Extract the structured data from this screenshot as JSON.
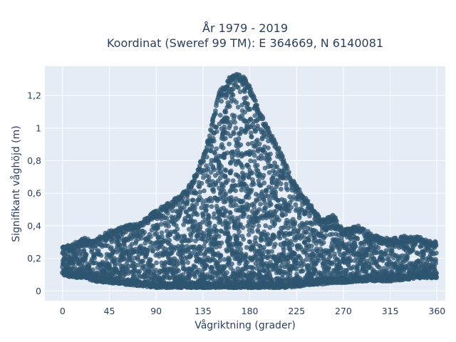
{
  "chart_data": {
    "type": "scatter",
    "title": [
      "År 1979 - 2019",
      "Koordinat (Sweref 99 TM): E 364669, N 6140081"
    ],
    "xlabel": "Vågriktning (grader)",
    "ylabel": "Signifikant våghöjd (m)",
    "xlim": [
      -17,
      368
    ],
    "ylim": [
      -0.06,
      1.38
    ],
    "xticks": [
      0,
      45,
      90,
      135,
      180,
      225,
      270,
      315,
      360
    ],
    "xtick_labels": [
      "0",
      "45",
      "90",
      "135",
      "180",
      "225",
      "270",
      "315",
      "360"
    ],
    "yticks": [
      0,
      0.2,
      0.4,
      0.6,
      0.8,
      1,
      1.2
    ],
    "ytick_labels": [
      "0",
      "0,2",
      "0,4",
      "0,6",
      "0,8",
      "1",
      "1,2"
    ],
    "grid": true,
    "colors": {
      "marker": "#2f5570",
      "plot_bg": "#e5ecf6",
      "grid": "#ffffff"
    },
    "series": [
      {
        "x": [
          0,
          10,
          20,
          30,
          45,
          60,
          75,
          90,
          105,
          120,
          130,
          140,
          150,
          160,
          165,
          170,
          175,
          180,
          190,
          200,
          210,
          220,
          230,
          240,
          250,
          260,
          270,
          285,
          300,
          315,
          330,
          345,
          360
        ],
        "y_max": [
          0.27,
          0.29,
          0.33,
          0.31,
          0.37,
          0.4,
          0.42,
          0.5,
          0.55,
          0.63,
          0.75,
          0.93,
          1.22,
          1.31,
          1.33,
          1.33,
          1.32,
          1.26,
          1.1,
          0.97,
          0.85,
          0.7,
          0.6,
          0.52,
          0.44,
          0.47,
          0.38,
          0.4,
          0.34,
          0.32,
          0.34,
          0.33,
          0.3
        ],
        "y_min": [
          0.1,
          0.08,
          0.08,
          0.06,
          0.05,
          0.04,
          0.03,
          0.02,
          0.02,
          0.02,
          0.02,
          0.02,
          0.02,
          0.02,
          0.02,
          0.02,
          0.02,
          0.02,
          0.02,
          0.02,
          0.02,
          0.02,
          0.03,
          0.04,
          0.04,
          0.05,
          0.05,
          0.06,
          0.06,
          0.06,
          0.07,
          0.08,
          0.08
        ]
      }
    ]
  }
}
